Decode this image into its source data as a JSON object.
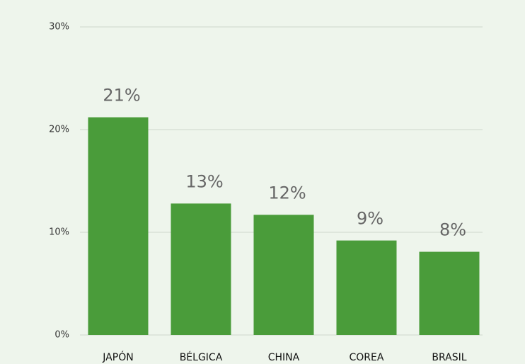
{
  "chart_data": {
    "type": "bar",
    "categories": [
      "JAPÓN",
      "BÉLGICA",
      "CHINA",
      "COREA",
      "BRASIL"
    ],
    "values": [
      21.2,
      12.8,
      11.7,
      9.2,
      8.1
    ],
    "value_labels": [
      "21%",
      "13%",
      "12%",
      "9%",
      "8%"
    ],
    "color": "#4a9c3a",
    "ylim": [
      0,
      30
    ],
    "yticks": [
      {
        "value": 0,
        "label": "0%"
      },
      {
        "value": 10,
        "label": "10%"
      },
      {
        "value": 20,
        "label": "20%"
      },
      {
        "value": 30,
        "label": "30%"
      }
    ],
    "grid": true
  }
}
